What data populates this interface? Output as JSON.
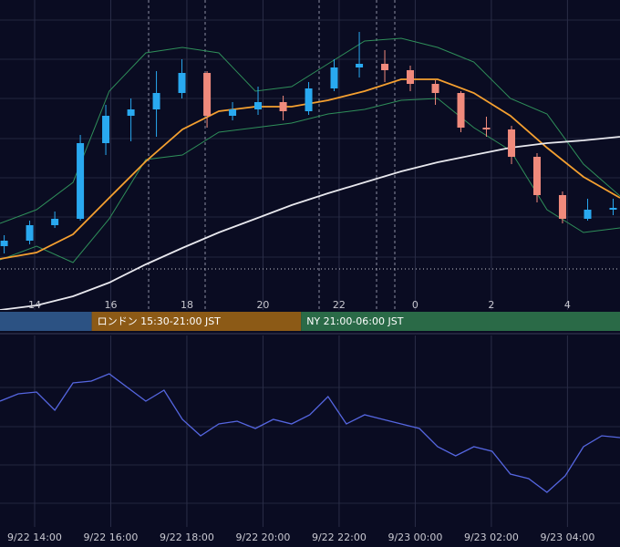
{
  "chart_data": [
    {
      "type": "candlestick",
      "xlim": [
        13.09,
        29.38
      ],
      "ylim": [
        0,
        340
      ],
      "xticks": [
        14,
        16,
        18,
        20,
        22,
        {
          "value": 24,
          "label": "0"
        },
        {
          "value": 26,
          "label": "2"
        },
        {
          "value": 28,
          "label": "4"
        }
      ],
      "candles": {
        "x": [
          13.2,
          13.87,
          14.53,
          15.2,
          15.87,
          16.53,
          17.2,
          17.87,
          18.53,
          19.2,
          19.87,
          20.53,
          21.2,
          21.87,
          22.53,
          23.2,
          23.87,
          24.53,
          25.2,
          25.87,
          26.53,
          27.2,
          27.87,
          28.53,
          29.2
        ],
        "open": [
          70,
          76,
          93,
          100,
          183,
          213,
          220,
          238,
          260,
          213,
          220,
          228,
          218,
          243,
          266,
          270,
          263,
          248,
          238,
          200,
          198,
          168,
          126,
          100,
          110
        ],
        "high": [
          82,
          98,
          108,
          192,
          225,
          232,
          262,
          275,
          262,
          228,
          245,
          235,
          250,
          275,
          305,
          285,
          268,
          252,
          240,
          212,
          202,
          172,
          130,
          122,
          122
        ],
        "low": [
          62,
          72,
          90,
          98,
          170,
          185,
          190,
          232,
          200,
          208,
          214,
          208,
          214,
          240,
          255,
          250,
          240,
          225,
          195,
          190,
          160,
          118,
          95,
          98,
          104
        ],
        "close": [
          76,
          93,
          100,
          183,
          213,
          220,
          238,
          260,
          213,
          220,
          228,
          218,
          243,
          266,
          270,
          263,
          248,
          238,
          200,
          198,
          168,
          126,
          100,
          110,
          112
        ]
      },
      "up_color": "#29a9f0",
      "down_color": "#f08a7c",
      "x": [
        13.09,
        14.05,
        15.01,
        15.96,
        16.92,
        17.88,
        18.84,
        19.8,
        20.75,
        21.71,
        22.67,
        23.63,
        24.59,
        25.54,
        26.5,
        27.46,
        28.42,
        29.38
      ],
      "series": [
        {
          "color": "#2f8f5a",
          "values": [
            95,
            110,
            140,
            240,
            282,
            288,
            282,
            240,
            245,
            270,
            295,
            298,
            288,
            272,
            232,
            215,
            160,
            125
          ]
        },
        {
          "color": "#2f8f5a",
          "values": [
            55,
            70,
            52,
            100,
            165,
            170,
            195,
            200,
            205,
            215,
            220,
            230,
            232,
            200,
            175,
            110,
            85,
            90
          ]
        },
        {
          "color": "#f5a030",
          "values": [
            56,
            63,
            83,
            123,
            163,
            198,
            218,
            223,
            223,
            230,
            240,
            253,
            253,
            238,
            213,
            178,
            146,
            123
          ]
        },
        {
          "color": "#e8e8ee",
          "values": [
            0,
            5,
            15,
            30,
            50,
            68,
            85,
            100,
            115,
            128,
            140,
            152,
            162,
            170,
            178,
            183,
            186,
            190
          ]
        }
      ],
      "hline": 45,
      "sessions": [
        {
          "end": 15.5,
          "color": "#2c5283"
        },
        {
          "start": 15.5,
          "end": 21,
          "label": "ロンドン 15:30-21:00 JST",
          "color": "#8c5a16"
        },
        {
          "start": 21,
          "label": "NY 21:00-06:00 JST",
          "color": "#2a6a47"
        }
      ]
    },
    {
      "type": "line",
      "xlim": [
        13.09,
        29.38
      ],
      "ylim": [
        0,
        210
      ],
      "xticks": [
        {
          "value": 14,
          "label": "9/22 14:00"
        },
        {
          "value": 16,
          "label": "9/22 16:00"
        },
        {
          "value": 18,
          "label": "9/22 18:00"
        },
        {
          "value": 20,
          "label": "9/22 20:00"
        },
        {
          "value": 22,
          "label": "9/22 22:00"
        },
        {
          "value": 24,
          "label": "9/23 00:00"
        },
        {
          "value": 26,
          "label": "9/23 02:00"
        },
        {
          "value": 28,
          "label": "9/23 04:00"
        }
      ],
      "color": "#5566e0",
      "x": [
        13.09,
        13.57,
        14.05,
        14.53,
        15.01,
        15.49,
        15.96,
        16.44,
        16.92,
        17.4,
        17.88,
        18.36,
        18.84,
        19.32,
        19.8,
        20.27,
        20.75,
        21.23,
        21.71,
        22.19,
        22.67,
        23.15,
        23.63,
        24.11,
        24.59,
        25.06,
        25.54,
        26.02,
        26.5,
        26.98,
        27.46,
        27.94,
        28.42,
        28.9,
        29.38
      ],
      "values": [
        138,
        146,
        148,
        128,
        158,
        160,
        168,
        153,
        138,
        150,
        118,
        100,
        113,
        116,
        108,
        118,
        113,
        123,
        143,
        113,
        123,
        118,
        113,
        108,
        88,
        78,
        88,
        83,
        58,
        53,
        38,
        56,
        88,
        100,
        98
      ]
    }
  ]
}
